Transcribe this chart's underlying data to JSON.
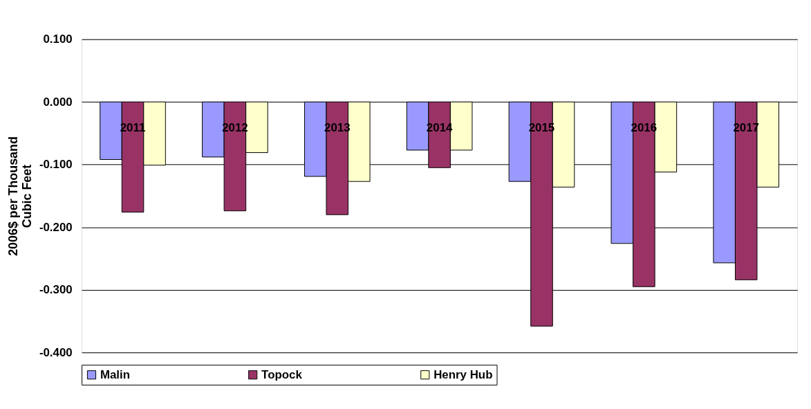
{
  "chart_data": {
    "type": "bar",
    "ylabel": "2006$ per Thousand Cubic Feet",
    "categories": [
      "2011",
      "2012",
      "2013",
      "2014",
      "2015",
      "2016",
      "2017"
    ],
    "series": [
      {
        "name": "Malin",
        "color": "#9999ff",
        "values": [
          -0.092,
          -0.088,
          -0.119,
          -0.077,
          -0.127,
          -0.226,
          -0.257
        ]
      },
      {
        "name": "Topock",
        "color": "#993366",
        "values": [
          -0.176,
          -0.174,
          -0.18,
          -0.105,
          -0.358,
          -0.295,
          -0.284
        ]
      },
      {
        "name": "Henry Hub",
        "color": "#ffffcc",
        "values": [
          -0.101,
          -0.081,
          -0.127,
          -0.077,
          -0.136,
          -0.112,
          -0.136
        ]
      }
    ],
    "ylim": [
      -0.4,
      0.1
    ],
    "yticks": [
      {
        "value": -0.4,
        "label": "-0.400"
      },
      {
        "value": -0.3,
        "label": "-0.300"
      },
      {
        "value": -0.2,
        "label": "-0.200"
      },
      {
        "value": -0.1,
        "label": "-0.100"
      },
      {
        "value": 0,
        "label": "0.000"
      },
      {
        "value": 0.1,
        "label": "0.100"
      }
    ],
    "grid": "y",
    "legend": "bottom"
  }
}
